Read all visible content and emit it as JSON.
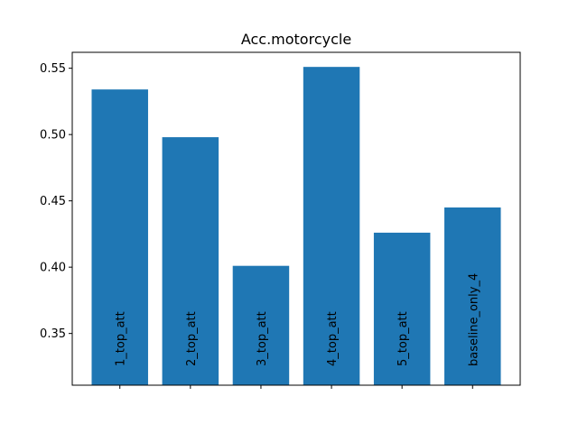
{
  "chart_data": {
    "type": "bar",
    "title": "Acc.motorcycle",
    "xlabel": "",
    "ylabel": "",
    "categories": [
      "1_top_att",
      "2_top_att",
      "3_top_att",
      "4_top_att",
      "5_top_att",
      "baseline_only_4"
    ],
    "values": [
      0.534,
      0.498,
      0.401,
      0.551,
      0.426,
      0.445
    ],
    "ylim": [
      0.311,
      0.562
    ],
    "yticks": [
      "0.35",
      "0.40",
      "0.45",
      "0.50",
      "0.55"
    ],
    "bar_color": "#1f77b4",
    "category_labels_inside_bars": true,
    "grid": false
  }
}
